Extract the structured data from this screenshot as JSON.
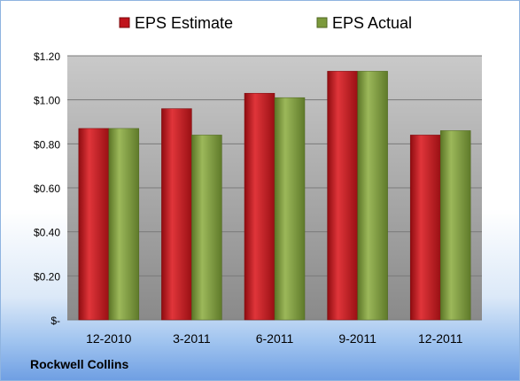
{
  "chart_data": {
    "type": "bar",
    "categories": [
      "12-2010",
      "3-2011",
      "6-2011",
      "9-2011",
      "12-2011"
    ],
    "series": [
      {
        "name": "EPS Estimate",
        "values": [
          0.87,
          0.96,
          1.03,
          1.13,
          0.84
        ],
        "color": "#c0141c"
      },
      {
        "name": "EPS Actual",
        "values": [
          0.87,
          0.84,
          1.01,
          1.13,
          0.86
        ],
        "color": "#7c9a3c"
      }
    ],
    "yticks": [
      "$-",
      "$0.20",
      "$0.40",
      "$0.60",
      "$0.80",
      "$1.00",
      "$1.20"
    ],
    "ylim": [
      0,
      1.2
    ],
    "grid": true,
    "legend": "top"
  },
  "footer": {
    "company": "Rockwell Collins"
  }
}
